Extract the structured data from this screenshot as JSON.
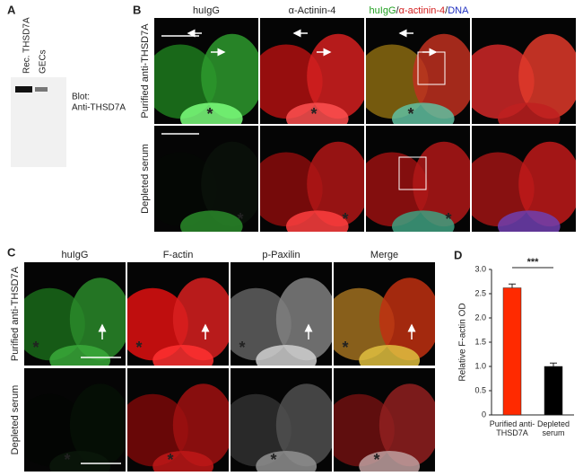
{
  "panel_a": {
    "label": "A",
    "lanes": [
      "Rec. THSD7A",
      "GECs"
    ],
    "blot_label": [
      "Blot:",
      "Anti-THSD7A"
    ]
  },
  "panel_b": {
    "label": "B",
    "columns": [
      "huIgG",
      "α-Actinin-4"
    ],
    "merge_header": [
      {
        "text": "huIgG",
        "color": "#22a022"
      },
      {
        "text": "/",
        "color": "#222222"
      },
      {
        "text": "α-actinin-4",
        "color": "#d42020"
      },
      {
        "text": "/",
        "color": "#222222"
      },
      {
        "text": "DNA",
        "color": "#2030c0"
      }
    ],
    "rows": [
      "Purified anti-THSD7A",
      "Depleted serum"
    ],
    "markers": [
      "*",
      "*",
      "*",
      "*",
      "*",
      "*"
    ]
  },
  "panel_c": {
    "label": "C",
    "columns": [
      "huIgG",
      "F-actin",
      "p-Paxilin",
      "Merge"
    ],
    "rows": [
      "Purified anti-THSD7A",
      "Depleted serum"
    ],
    "markers": [
      "*",
      "*",
      "*",
      "*",
      "*",
      "*",
      "*",
      "*"
    ]
  },
  "chart_data": {
    "type": "bar",
    "panel_label": "D",
    "ylabel": "Relative F-actin OD",
    "categories": [
      "Purified anti-THSD7A",
      "Depleted serum"
    ],
    "values": [
      2.62,
      1.0
    ],
    "errors": [
      0.08,
      0.07
    ],
    "colors": [
      "#ff2a00",
      "#000000"
    ],
    "ylim": [
      0,
      3
    ],
    "yticks": [
      0,
      0.5,
      {
        "value": 1,
        "label": "1.0"
      },
      1.5,
      {
        "value": 2,
        "label": "2.0"
      },
      2.5,
      {
        "value": 3,
        "label": "3.0"
      }
    ],
    "significance": "***"
  }
}
